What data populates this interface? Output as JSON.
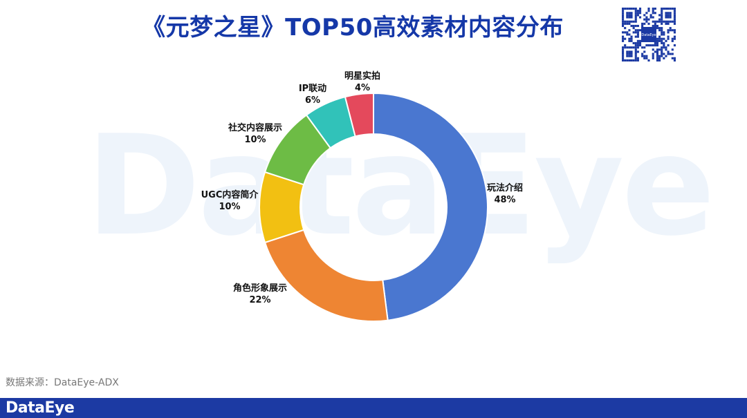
{
  "title": "《元梦之星》TOP50高效素材内容分布",
  "watermark_text": "DataEye",
  "qr_logo_text": "DataEye",
  "source_text": "数据来源：DataEye-ADX",
  "footer_logo_text": "DataEye",
  "colors": {
    "title": "#1538a8",
    "footer": "#1c3aa3"
  },
  "chart_data": {
    "type": "pie",
    "subtype": "donut",
    "title": "",
    "categories": [
      "玩法介绍",
      "角色形象展示",
      "UGC内容简介",
      "社交内容展示",
      "IP联动",
      "明星实拍"
    ],
    "values": [
      48,
      22,
      10,
      10,
      6,
      4
    ],
    "value_labels": [
      "48%",
      "22%",
      "10%",
      "10%",
      "6%",
      "4%"
    ],
    "colors": [
      "#4a77d0",
      "#ee8533",
      "#f2c012",
      "#6dbc45",
      "#31c2b9",
      "#e4495c"
    ],
    "start_angle": "12 o'clock",
    "direction": "clockwise",
    "legend": "none"
  }
}
